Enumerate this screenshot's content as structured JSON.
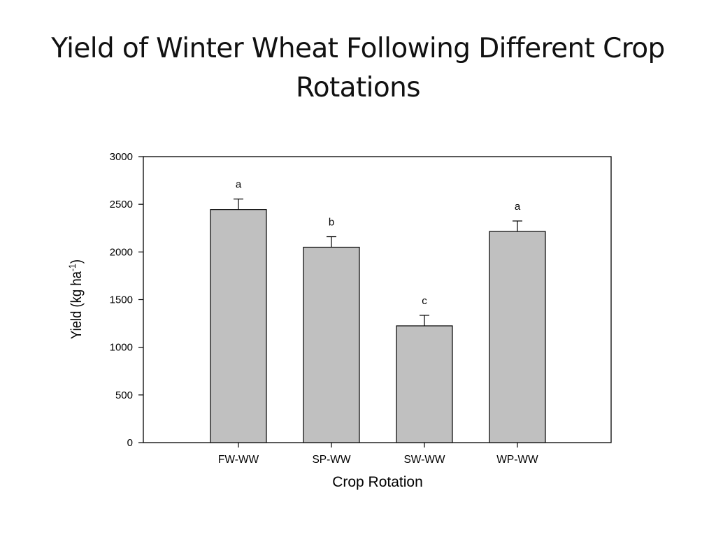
{
  "slide": {
    "title_line1": "Yield of Winter Wheat Following Different Crop",
    "title_line2": "Rotations"
  },
  "chart_data": {
    "type": "bar",
    "title": "Yield of Winter Wheat Following Different Crop Rotations",
    "categories": [
      "FW-WW",
      "SP-WW",
      "SW-WW",
      "WP-WW"
    ],
    "values": [
      2445,
      2050,
      1225,
      2215
    ],
    "error_upper": [
      110,
      110,
      110,
      110
    ],
    "significance_labels": [
      "a",
      "b",
      "c",
      "a"
    ],
    "xlabel": "Crop Rotation",
    "ylabel_main": "Yield (kg ha",
    "ylabel_sup": "-1",
    "ylabel_close": ")",
    "ylim": [
      0,
      3000
    ],
    "yticks": [
      0,
      500,
      1000,
      1500,
      2000,
      2500,
      3000
    ],
    "bar_color": "#c0c0c0",
    "grid": false,
    "legend": "none"
  }
}
